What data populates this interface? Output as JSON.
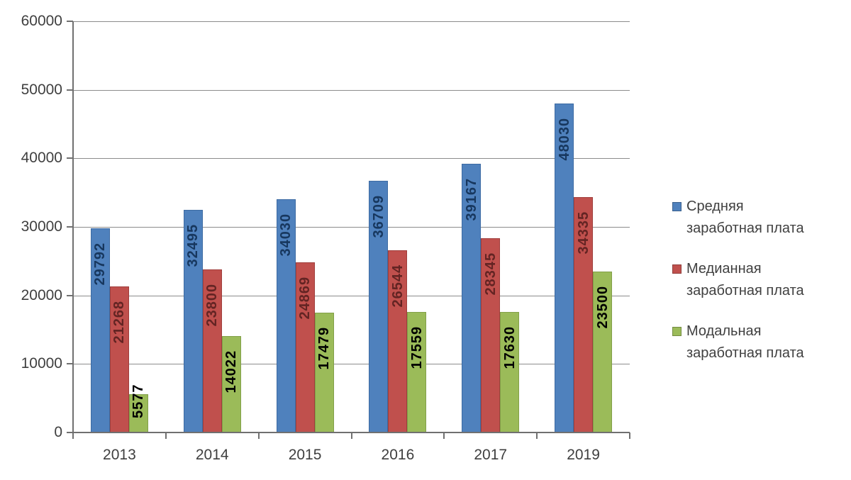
{
  "chart_data": {
    "type": "bar",
    "title": "",
    "xlabel": "",
    "ylabel": "",
    "categories": [
      "2013",
      "2014",
      "2015",
      "2016",
      "2017",
      "2019"
    ],
    "series": [
      {
        "name": "Средняя заработная плата",
        "color": "#4F81BD",
        "border_color": "#3d6ba3",
        "label_color": "#17375E",
        "values": [
          29792,
          32495,
          34030,
          36709,
          39167,
          48030
        ]
      },
      {
        "name": "Медианная заработная плата",
        "color": "#C0504D",
        "border_color": "#a03e3c",
        "label_color": "#632423",
        "values": [
          21268,
          23800,
          24869,
          26544,
          28345,
          34335
        ]
      },
      {
        "name": "Модальная заработная плата",
        "color": "#9BBB59",
        "border_color": "#82a049",
        "label_color": "#000000",
        "values": [
          5577,
          14022,
          17479,
          17559,
          17630,
          23500
        ]
      }
    ],
    "ylim": [
      0,
      60000
    ],
    "ytick_step": 10000,
    "yticks": [
      "0",
      "10000",
      "20000",
      "30000",
      "40000",
      "50000",
      "60000"
    ],
    "grid": true,
    "legend_position": "right",
    "legend": [
      {
        "lines": [
          "Средняя",
          "заработная плата"
        ],
        "color": "#4F81BD"
      },
      {
        "lines": [
          "Медианная",
          "заработная плата"
        ],
        "color": "#C0504D"
      },
      {
        "lines": [
          "Модальная",
          "заработная плата"
        ],
        "color": "#9BBB59"
      }
    ],
    "colors": {
      "background": "#ffffff",
      "axis": "#707070",
      "gridline": "#8c8c8c",
      "tick_label": "#3f3f3f",
      "legend_text": "#404040"
    }
  }
}
